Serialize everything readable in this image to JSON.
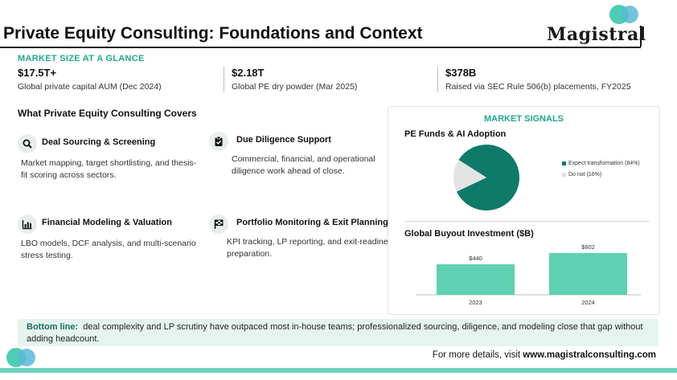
{
  "header": {
    "title": "Private Equity Consulting: Foundations and Context",
    "logo": "Magistral"
  },
  "market_size": {
    "label": "MARKET SIZE AT A GLANCE",
    "stats": [
      {
        "value": "$17.5T+",
        "desc": "Global private capital AUM (Dec 2024)"
      },
      {
        "value": "$2.18T",
        "desc": "Global PE dry powder (Mar 2025)"
      },
      {
        "value": "$378B",
        "desc": "Raised via SEC Rule 506(b) placements, FY2025"
      }
    ]
  },
  "covers": {
    "title": "What Private Equity Consulting Covers",
    "items": [
      {
        "icon": "search-icon",
        "name": "Deal Sourcing & Screening",
        "text": "Market mapping, target shortlisting, and thesis-fit scoring across sectors."
      },
      {
        "icon": "clipboard-check-icon",
        "name": "Due Diligence Support",
        "text": "Commercial, financial, and operational diligence work ahead of close."
      },
      {
        "icon": "bar-chart-icon",
        "name": "Financial Modeling & Valuation",
        "text": "LBO models, DCF analysis, and multi-scenario stress testing."
      },
      {
        "icon": "flag-icon",
        "name": "Portfolio Monitoring & Exit Planning",
        "text": "KPI tracking, LP reporting, and exit-readiness preparation."
      }
    ]
  },
  "signals": {
    "title": "MARKET SIGNALS",
    "pie_title": "PE Funds & AI Adoption",
    "buyout_title": "Global Buyout Investment ($B)"
  },
  "colors": {
    "accent": "#20a88e",
    "pie_main": "#0f7a6a",
    "pie_other": "#e3e3e3",
    "bar": "#5fd0b1"
  },
  "chart_data": [
    {
      "type": "pie",
      "title": "PE Funds & AI Adoption",
      "slices": [
        {
          "label": "Expect transformation (84%)",
          "value": 84
        },
        {
          "label": "Do not (16%)",
          "value": 16
        }
      ]
    },
    {
      "type": "bar",
      "title": "Global Buyout Investment ($B)",
      "categories": [
        "2023",
        "2024"
      ],
      "values": [
        440,
        602
      ],
      "data_labels": [
        "$440",
        "$602"
      ]
    }
  ],
  "bottom_line": {
    "label": "Bottom line:",
    "text": "deal complexity and LP scrutiny have outpaced most in-house teams; professionalized sourcing, diligence, and modeling close that gap without adding headcount."
  },
  "footer": {
    "prefix": "For more details, visit",
    "url": "www.magistralconsulting.com"
  }
}
